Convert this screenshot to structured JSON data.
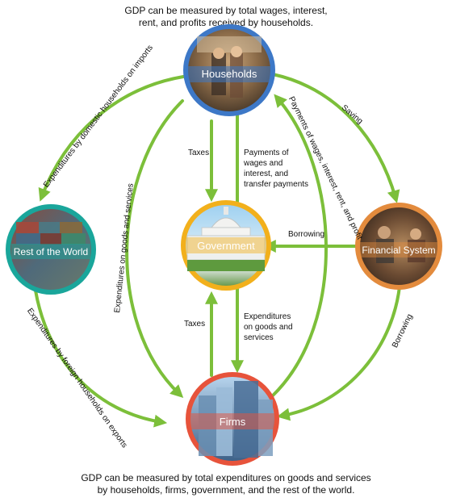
{
  "captions": {
    "top_line1": "GDP can be measured by total wages, interest,",
    "top_line2": "rent, and profits received by households.",
    "bottom_line1": "GDP can be measured by total expenditures on goods and services",
    "bottom_line2": "by households, firms, government, and the rest of the world."
  },
  "nodes": {
    "households": "Households",
    "government": "Government",
    "firms": "Firms",
    "rest_of_world": "Rest of the World",
    "financial_system": "Financial System"
  },
  "flows": {
    "saving": "Saving",
    "taxes_household": "Taxes",
    "payments_line1": "Payments of",
    "payments_line2": "wages and",
    "payments_line3": "interest, and",
    "payments_line4": "transfer payments",
    "borrowing_gov": "Borrowing",
    "taxes_firms": "Taxes",
    "expenditures_gov_line1": "Expenditures",
    "expenditures_gov_line2": "on goods and",
    "expenditures_gov_line3": "services",
    "borrowing_firms": "Borrowing",
    "imports": "Expenditures by domestic households on imports",
    "exports": "Expenditures by foreign households on exports",
    "hh_expenditures": "Expenditures on goods and services",
    "payments_firms": "Payments of wages, interest, rent, and profit"
  },
  "colors": {
    "arrow": "#7cbf3a",
    "households_ring": "#3d78c7",
    "government_ring": "#f2b01c",
    "firms_ring": "#e7533b",
    "rest_of_world_ring": "#1aa69b",
    "financial_system_ring": "#e38b3d"
  }
}
